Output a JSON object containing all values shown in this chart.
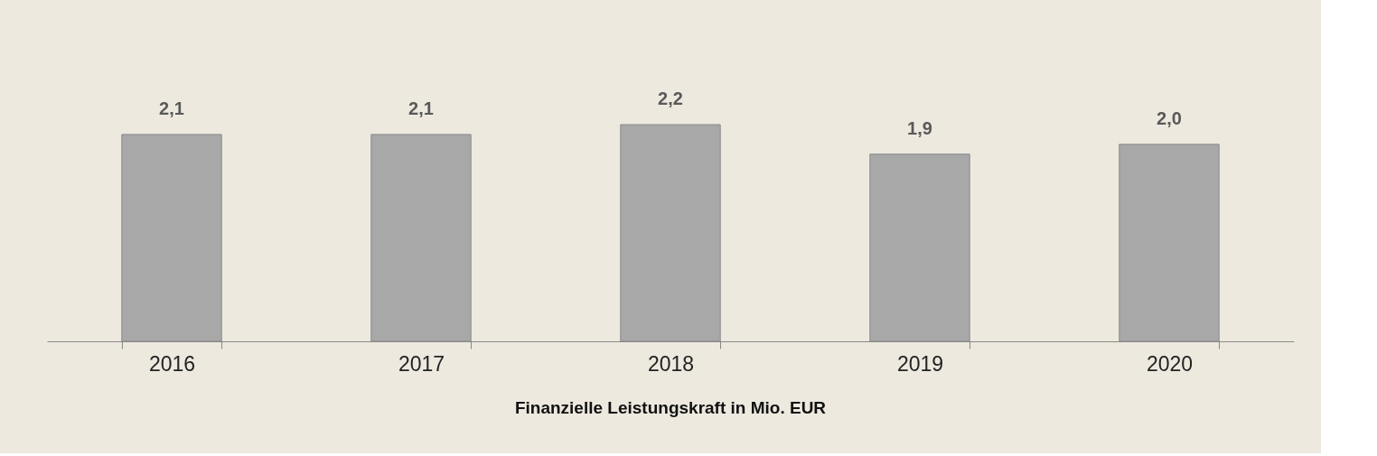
{
  "chart_data": {
    "type": "bar",
    "title": "Finanzielle Leistungskraft in Mio. EUR",
    "categories": [
      "2016",
      "2017",
      "2018",
      "2019",
      "2020"
    ],
    "values": [
      2.1,
      2.1,
      2.2,
      1.9,
      2.0
    ],
    "value_labels": [
      "2,1",
      "2,1",
      "2,2",
      "1,9",
      "2,0"
    ],
    "color": "#a8a8a8",
    "tick_labels": "x",
    "grid": false
  }
}
